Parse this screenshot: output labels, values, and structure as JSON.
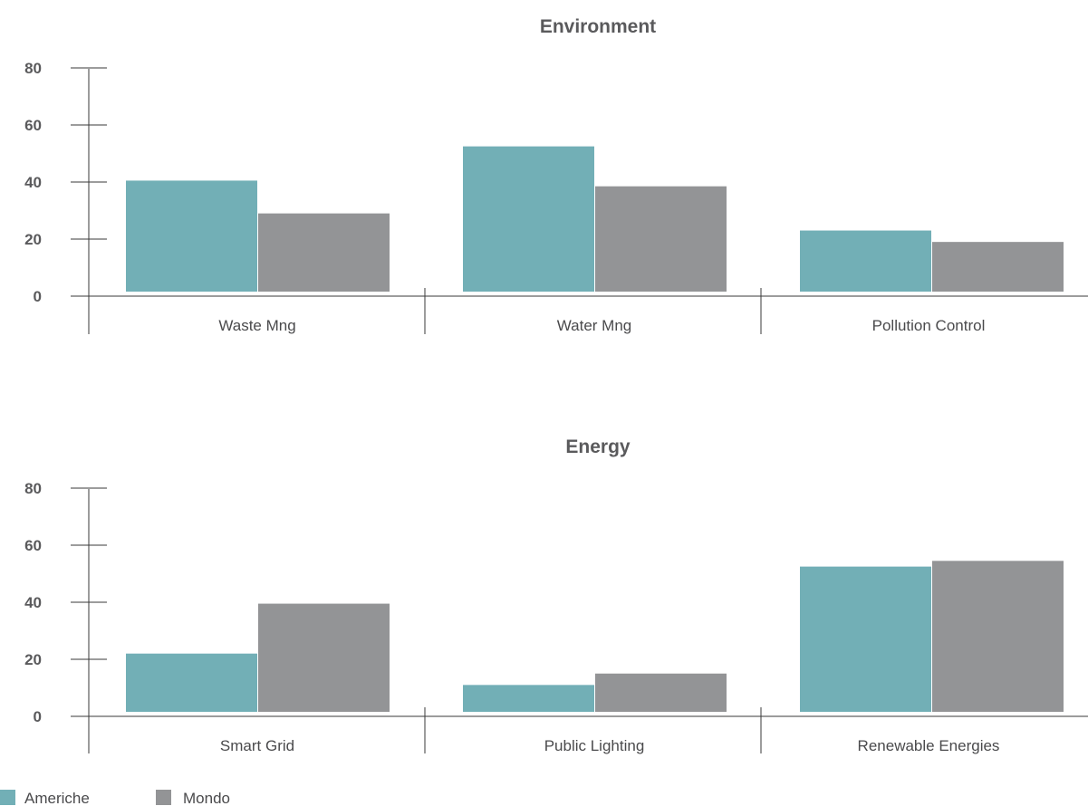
{
  "colors": {
    "americhe": "#72afb6",
    "mondo": "#939496",
    "text": "#5a5a5c",
    "axis": "#3a3a3a"
  },
  "legend": [
    {
      "label": "Americhe",
      "color": "#72afb6"
    },
    {
      "label": "Mondo",
      "color": "#939496"
    }
  ],
  "chart_data": [
    {
      "type": "bar",
      "title": "Environment",
      "categories": [
        "Waste Mng",
        "Water Mng",
        "Pollution Control"
      ],
      "series": [
        {
          "name": "Americhe",
          "values": [
            40.5,
            52.5,
            23
          ]
        },
        {
          "name": "Mondo",
          "values": [
            29,
            38.5,
            19
          ]
        }
      ],
      "yticks": [
        "0",
        "20",
        "40",
        "60",
        "80"
      ],
      "ylim": [
        0,
        80
      ],
      "xlabel": "",
      "ylabel": "",
      "grid": false,
      "legend_position": "bottom-left"
    },
    {
      "type": "bar",
      "title": "Energy",
      "categories": [
        "Smart Grid",
        "Public Lighting",
        "Renewable Energies"
      ],
      "series": [
        {
          "name": "Americhe",
          "values": [
            22,
            11,
            52.5
          ]
        },
        {
          "name": "Mondo",
          "values": [
            39.5,
            15,
            54.5
          ]
        }
      ],
      "yticks": [
        "0",
        "20",
        "40",
        "60",
        "80"
      ],
      "ylim": [
        0,
        80
      ],
      "xlabel": "",
      "ylabel": "",
      "grid": false,
      "legend_position": "bottom-left"
    }
  ]
}
